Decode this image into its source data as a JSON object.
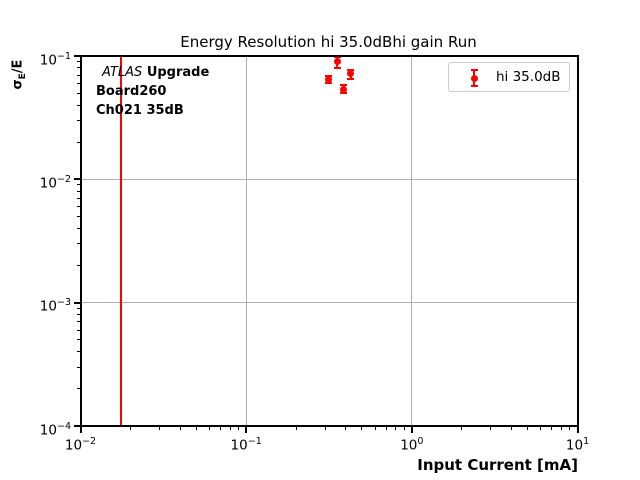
{
  "chart_data": {
    "type": "scatter",
    "title": "Energy Resolution hi 35.0dBhi gain Run",
    "xlabel": "Input Current [mA]",
    "ylabel": "σE/E",
    "ylabel_parts": {
      "sigma": "σ",
      "sub": "E",
      "rest": "/E"
    },
    "xscale": "log",
    "yscale": "log",
    "xlim": [
      0.01,
      10
    ],
    "ylim": [
      0.0001,
      0.1
    ],
    "grid": true,
    "x_tick_exponents": [
      -2,
      -1,
      0,
      1
    ],
    "y_tick_exponents": [
      -1,
      -2,
      -3,
      -4
    ],
    "series": [
      {
        "name": "hi 35.0dB",
        "color": "#ff0000",
        "marker": "circle-with-errorbar",
        "points": [
          {
            "x": 0.355,
            "y": 0.0895,
            "yerr": 0.009
          },
          {
            "x": 0.427,
            "y": 0.0715,
            "yerr": 0.006
          },
          {
            "x": 0.316,
            "y": 0.0645,
            "yerr": 0.0045
          },
          {
            "x": 0.389,
            "y": 0.054,
            "yerr": 0.004
          }
        ]
      }
    ],
    "vline": {
      "x": 0.0175,
      "color": "#ff0000"
    },
    "legend": {
      "label": "hi 35.0dB",
      "position": "upper right"
    },
    "annotation": {
      "line1_italic": "ATLAS",
      "line1_bold": "Upgrade",
      "line2": "Board260",
      "line3": "Ch021 35dB"
    },
    "colors": {
      "accent_red": "#ff0000",
      "grid": "#b0b0b0",
      "axis": "#000000",
      "legend_border": "#cccccc"
    }
  }
}
